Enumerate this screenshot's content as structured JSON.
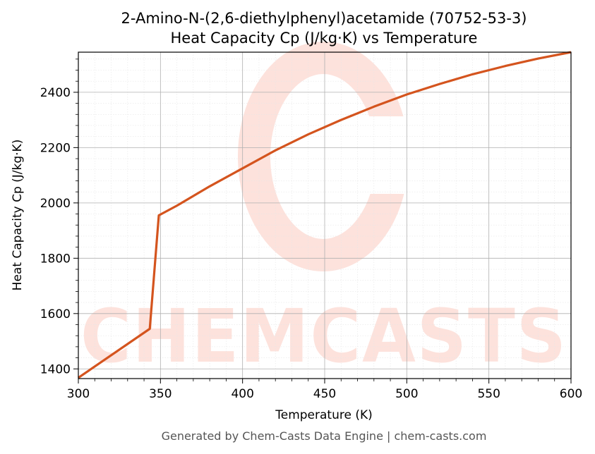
{
  "chart_data": {
    "type": "line",
    "title_line1": "2-Amino-N-(2,6-diethylphenyl)acetamide (70752-53-3)",
    "title_line2": "Heat Capacity Cp (J/kg·K) vs Temperature",
    "xlabel": "Temperature (K)",
    "ylabel": "Heat Capacity Cp (J/kg·K)",
    "xlim": [
      300,
      600
    ],
    "ylim": [
      1365,
      2545
    ],
    "xticks": [
      300,
      350,
      400,
      450,
      500,
      550,
      600
    ],
    "yticks": [
      1400,
      1600,
      1800,
      2000,
      2200,
      2400
    ],
    "grid": true,
    "line_color": "#d4541e",
    "series": [
      {
        "x": [
          300,
          343.5,
          349,
          360,
          380,
          400,
          420,
          440,
          460,
          480,
          500,
          520,
          540,
          560,
          580,
          600
        ],
        "y": [
          1368,
          1545,
          1955,
          1990,
          2060,
          2125,
          2190,
          2248,
          2300,
          2348,
          2392,
          2430,
          2465,
          2495,
          2522,
          2545
        ]
      }
    ]
  },
  "watermark": {
    "text": "CHEMCASTS",
    "color": "#fde2dc"
  },
  "footer": "Generated by Chem-Casts Data Engine | chem-casts.com"
}
